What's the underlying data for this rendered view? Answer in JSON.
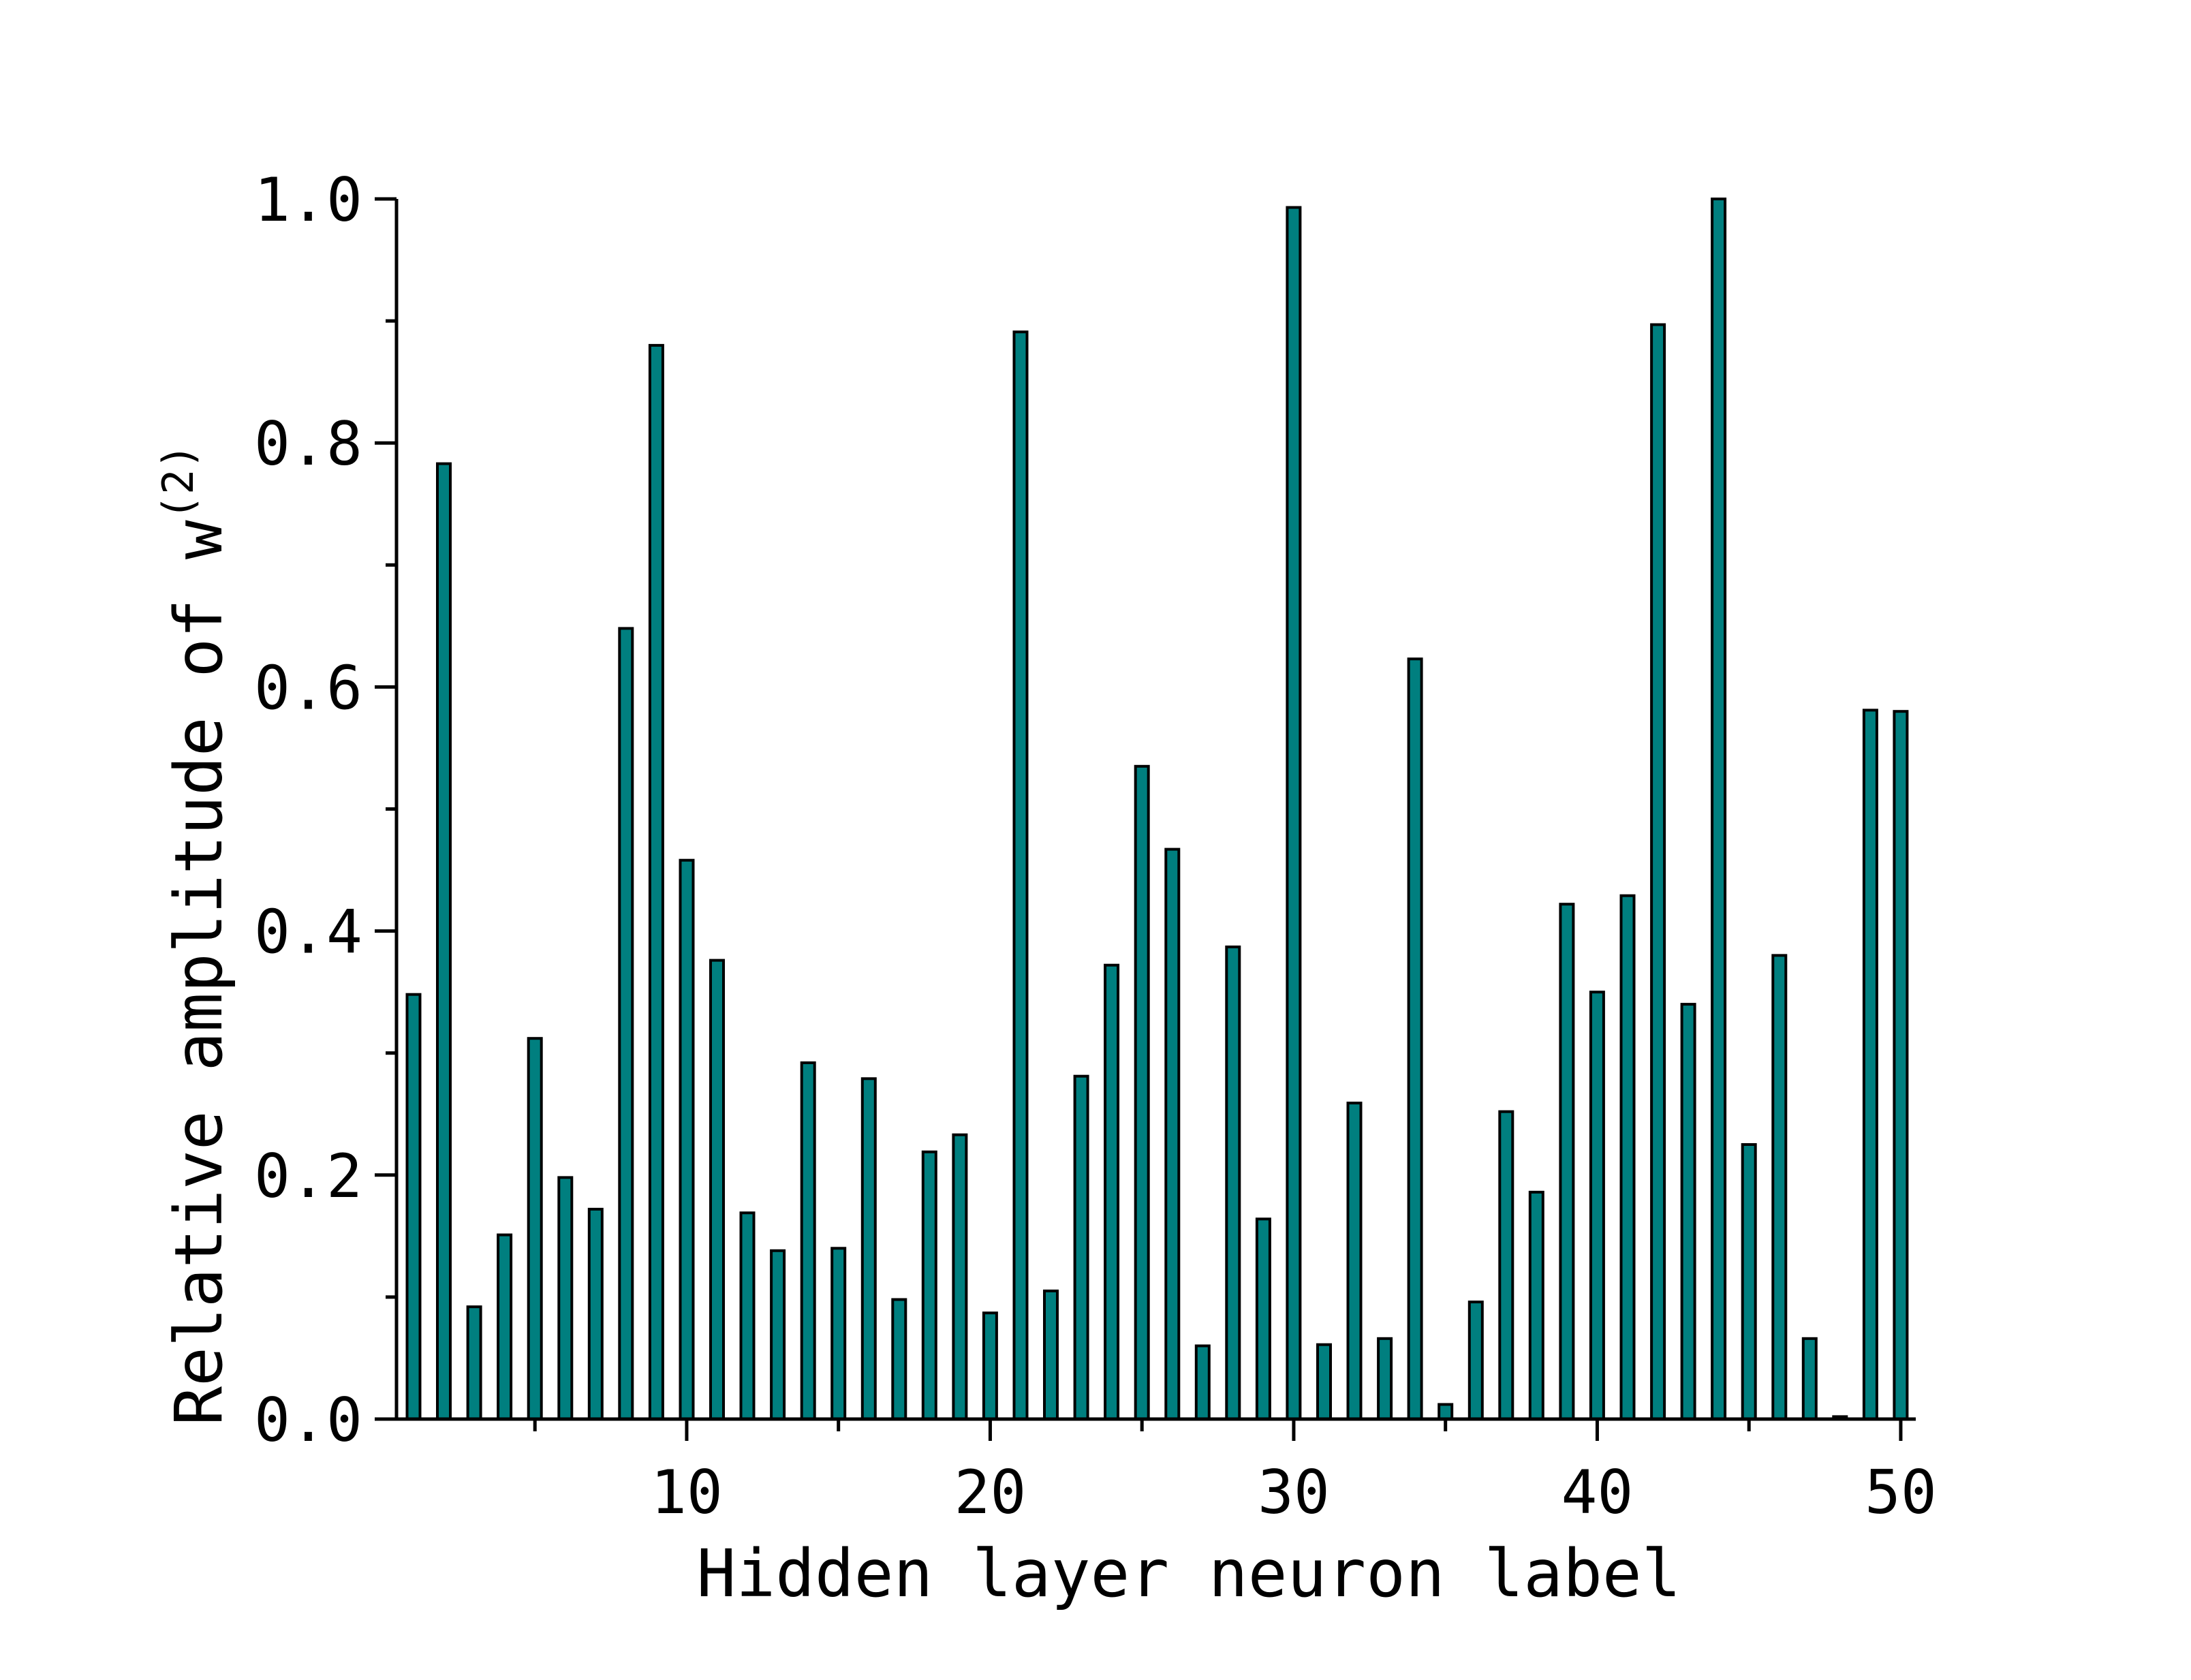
{
  "chart_data": {
    "type": "bar",
    "xlabel": "Hidden layer neuron label",
    "ylabel": "Relative amplitude of w",
    "ylabel_superscript": "(2)",
    "xlim": [
      0,
      50.5
    ],
    "ylim": [
      0,
      1.0
    ],
    "x_ticks": [
      10,
      20,
      30,
      40,
      50
    ],
    "x_minor_ticks": [
      5,
      15,
      25,
      35,
      45
    ],
    "y_ticks": [
      "0.0",
      "0.2",
      "0.4",
      "0.6",
      "0.8",
      "1.0"
    ],
    "y_tick_values": [
      0,
      0.2,
      0.4,
      0.6,
      0.8,
      1.0
    ],
    "y_minor_ticks": [
      0.1,
      0.3,
      0.5,
      0.7,
      0.9
    ],
    "grid": false,
    "bar_color": "#007f7f",
    "bar_edge_color": "#000000",
    "x": [
      1,
      2,
      3,
      4,
      5,
      6,
      7,
      8,
      9,
      10,
      11,
      12,
      13,
      14,
      15,
      16,
      17,
      18,
      19,
      20,
      21,
      22,
      23,
      24,
      25,
      26,
      27,
      28,
      29,
      30,
      31,
      32,
      33,
      34,
      35,
      36,
      37,
      38,
      39,
      40,
      41,
      42,
      43,
      44,
      45,
      46,
      47,
      48,
      49,
      50
    ],
    "values": [
      0.348,
      0.783,
      0.092,
      0.151,
      0.312,
      0.198,
      0.172,
      0.648,
      0.88,
      0.458,
      0.376,
      0.169,
      0.138,
      0.292,
      0.14,
      0.279,
      0.098,
      0.219,
      0.233,
      0.087,
      0.891,
      0.105,
      0.281,
      0.372,
      0.535,
      0.467,
      0.06,
      0.387,
      0.164,
      0.993,
      0.061,
      0.259,
      0.066,
      0.623,
      0.012,
      0.096,
      0.252,
      0.186,
      0.422,
      0.35,
      0.429,
      0.897,
      0.34,
      1.0,
      0.225,
      0.38,
      0.066,
      0.002,
      0.581,
      0.58
    ]
  }
}
